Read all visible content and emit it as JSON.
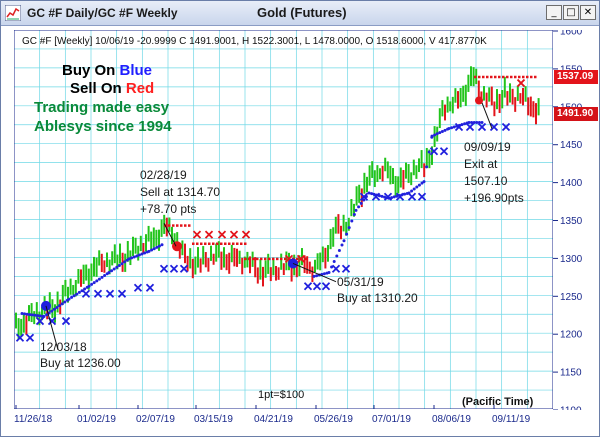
{
  "window": {
    "title": "GC #F Daily/GC #F Weekly",
    "chart_title": "Gold (Futures)",
    "buttons": {
      "minimize": "_",
      "maximize": "□",
      "close": "✕"
    }
  },
  "info_line": "GC #F [Weekly] 10/06/19  -20.9999 C 1491.9001, H 1522.3001, L 1478.0000, O 1518.6000, V 417.8770K",
  "advert": {
    "line1_a": "Buy On ",
    "line1_b": "Blue",
    "line2_a": "Sell On ",
    "line2_b": "Red",
    "line3": "Trading made easy",
    "line4": "Ablesys since 1994",
    "colors": {
      "black": "#000000",
      "blue": "#1f1fff",
      "red": "#ff2020",
      "green": "#0a8a3a"
    }
  },
  "annotations": {
    "a1_l1": "02/28/19",
    "a1_l2": "Sell at 1314.70",
    "a1_l3": "+78.70 pts",
    "a2_l1": "12/03/18",
    "a2_l2": "Buy at 1236.00",
    "a3_l1": "05/31/19",
    "a3_l2": "Buy at 1310.20",
    "a4_l1": "09/09/19",
    "a4_l2": "Exit at",
    "a4_l3": "1507.10",
    "a4_l4": "+196.90pts"
  },
  "footer": {
    "point_value": "1pt=$100",
    "timezone": "(Pacific Time)"
  },
  "price_tags": {
    "tag1": "1537.09",
    "tag2": "1491.90"
  },
  "chart_data": {
    "type": "bar",
    "ylim": [
      1100,
      1600
    ],
    "y_ticks": [
      1100,
      1150,
      1200,
      1250,
      1300,
      1350,
      1400,
      1450,
      1500,
      1550,
      1600
    ],
    "y_tick_labels": [
      "1100",
      "1150",
      "1200",
      "1250",
      "1300",
      "1350",
      "1400",
      "1450",
      "1500",
      "1550",
      "1600"
    ],
    "x_tick_labels": [
      "11/26/18",
      "01/02/19",
      "02/07/19",
      "03/15/19",
      "04/21/19",
      "05/26/19",
      "07/01/19",
      "08/06/19",
      "09/11/19"
    ],
    "grid": true,
    "colors": {
      "up": "#22c41b",
      "down": "#e3141b",
      "stop": "#2222dd",
      "exit": "#1f1fdd",
      "sell_stop": "#e3141b",
      "grid": "#6fd8e6"
    }
  }
}
